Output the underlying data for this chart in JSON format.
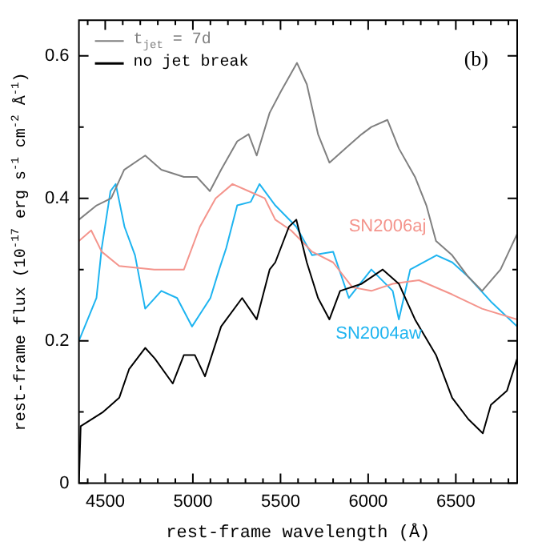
{
  "chart_data": {
    "type": "line",
    "xlabel": "rest-frame wavelength (Å)",
    "ylabel": "rest-frame flux (10$^{-17}$ erg s$^{-1}$ cm$^{-2}$ Å$^{-1}$)",
    "xlim": [
      4350,
      6850
    ],
    "ylim": [
      0,
      0.65
    ],
    "xticks": [
      {
        "value": 4400,
        "label": null
      },
      4500,
      {
        "value": 4600,
        "label": null
      },
      {
        "value": 4700,
        "label": null
      },
      {
        "value": 4800,
        "label": null
      },
      {
        "value": 4900,
        "label": null
      },
      5000,
      {
        "value": 5100,
        "label": null
      },
      {
        "value": 5200,
        "label": null
      },
      {
        "value": 5300,
        "label": null
      },
      {
        "value": 5400,
        "label": null
      },
      5500,
      {
        "value": 5600,
        "label": null
      },
      {
        "value": 5700,
        "label": null
      },
      {
        "value": 5800,
        "label": null
      },
      {
        "value": 5900,
        "label": null
      },
      6000,
      {
        "value": 6100,
        "label": null
      },
      {
        "value": 6200,
        "label": null
      },
      {
        "value": 6300,
        "label": null
      },
      {
        "value": 6400,
        "label": null
      },
      6500,
      {
        "value": 6600,
        "label": null
      },
      {
        "value": 6700,
        "label": null
      },
      {
        "value": 6800,
        "label": null
      }
    ],
    "yticks": [
      0,
      {
        "value": 0.1,
        "label": null
      },
      0.2,
      {
        "value": 0.3,
        "label": null
      },
      0.4,
      {
        "value": 0.5,
        "label": null
      },
      0.6
    ],
    "legend": "top left",
    "grid": false,
    "marker": "none",
    "line_style": "solid",
    "annotations": [
      "(b)"
    ],
    "series": [
      {
        "name": "t$_{jet}$ = 7d",
        "color": "#808080",
        "x": [
          4350,
          4451,
          4534,
          4608,
          4728,
          4820,
          4949,
          5023,
          5097,
          5161,
          5253,
          5318,
          5364,
          5438,
          5502,
          5594,
          5650,
          5714,
          5779,
          5871,
          5963,
          6018,
          6110,
          6175,
          6267,
          6332,
          6387,
          6479,
          6570,
          6650,
          6755,
          6850
        ],
        "values": [
          0.37,
          0.39,
          0.4,
          0.44,
          0.46,
          0.44,
          0.43,
          0.43,
          0.41,
          0.44,
          0.48,
          0.49,
          0.46,
          0.52,
          0.55,
          0.59,
          0.56,
          0.49,
          0.45,
          0.47,
          0.49,
          0.5,
          0.51,
          0.47,
          0.43,
          0.39,
          0.34,
          0.32,
          0.29,
          0.27,
          0.3,
          0.35
        ]
      },
      {
        "name": "no jet break",
        "color": "#000000",
        "x": [
          4350,
          4360,
          4488,
          4580,
          4636,
          4728,
          4783,
          4885,
          4949,
          5011,
          5069,
          5161,
          5281,
          5364,
          5438,
          5470,
          5548,
          5590,
          5650,
          5714,
          5779,
          5840,
          5963,
          6083,
          6175,
          6267,
          6387,
          6479,
          6571,
          6654,
          6700,
          6792,
          6850
        ],
        "values": [
          0,
          0.08,
          0.1,
          0.12,
          0.16,
          0.19,
          0.175,
          0.14,
          0.18,
          0.18,
          0.15,
          0.22,
          0.26,
          0.23,
          0.3,
          0.31,
          0.36,
          0.37,
          0.31,
          0.26,
          0.23,
          0.27,
          0.28,
          0.3,
          0.28,
          0.23,
          0.18,
          0.12,
          0.09,
          0.07,
          0.11,
          0.13,
          0.175
        ]
      },
      {
        "name": "SN2006aj",
        "color": "#f4948c",
        "x": [
          4350,
          4420,
          4480,
          4580,
          4780,
          4900,
          4949,
          5040,
          5130,
          5226,
          5318,
          5410,
          5470,
          5560,
          5680,
          5800,
          5910,
          6018,
          6140,
          6290,
          6479,
          6650,
          6850
        ],
        "values": [
          0.34,
          0.355,
          0.325,
          0.305,
          0.3,
          0.3,
          0.3,
          0.36,
          0.4,
          0.42,
          0.41,
          0.4,
          0.37,
          0.355,
          0.325,
          0.31,
          0.275,
          0.27,
          0.28,
          0.285,
          0.265,
          0.245,
          0.23
        ]
      },
      {
        "name": "SN2004aw",
        "color": "#1eb4f0",
        "x": [
          4350,
          4450,
          4480,
          4530,
          4560,
          4610,
          4670,
          4728,
          4820,
          4910,
          4995,
          5100,
          5150,
          5190,
          5253,
          5330,
          5380,
          5470,
          5590,
          5680,
          5800,
          5890,
          6018,
          6140,
          6175,
          6240,
          6390,
          6480,
          6570,
          6700,
          6850
        ],
        "values": [
          0.2,
          0.26,
          0.33,
          0.41,
          0.42,
          0.36,
          0.32,
          0.245,
          0.27,
          0.26,
          0.22,
          0.26,
          0.3,
          0.33,
          0.39,
          0.395,
          0.42,
          0.39,
          0.36,
          0.32,
          0.325,
          0.26,
          0.3,
          0.27,
          0.23,
          0.3,
          0.32,
          0.31,
          0.29,
          0.255,
          0.22
        ]
      }
    ]
  }
}
